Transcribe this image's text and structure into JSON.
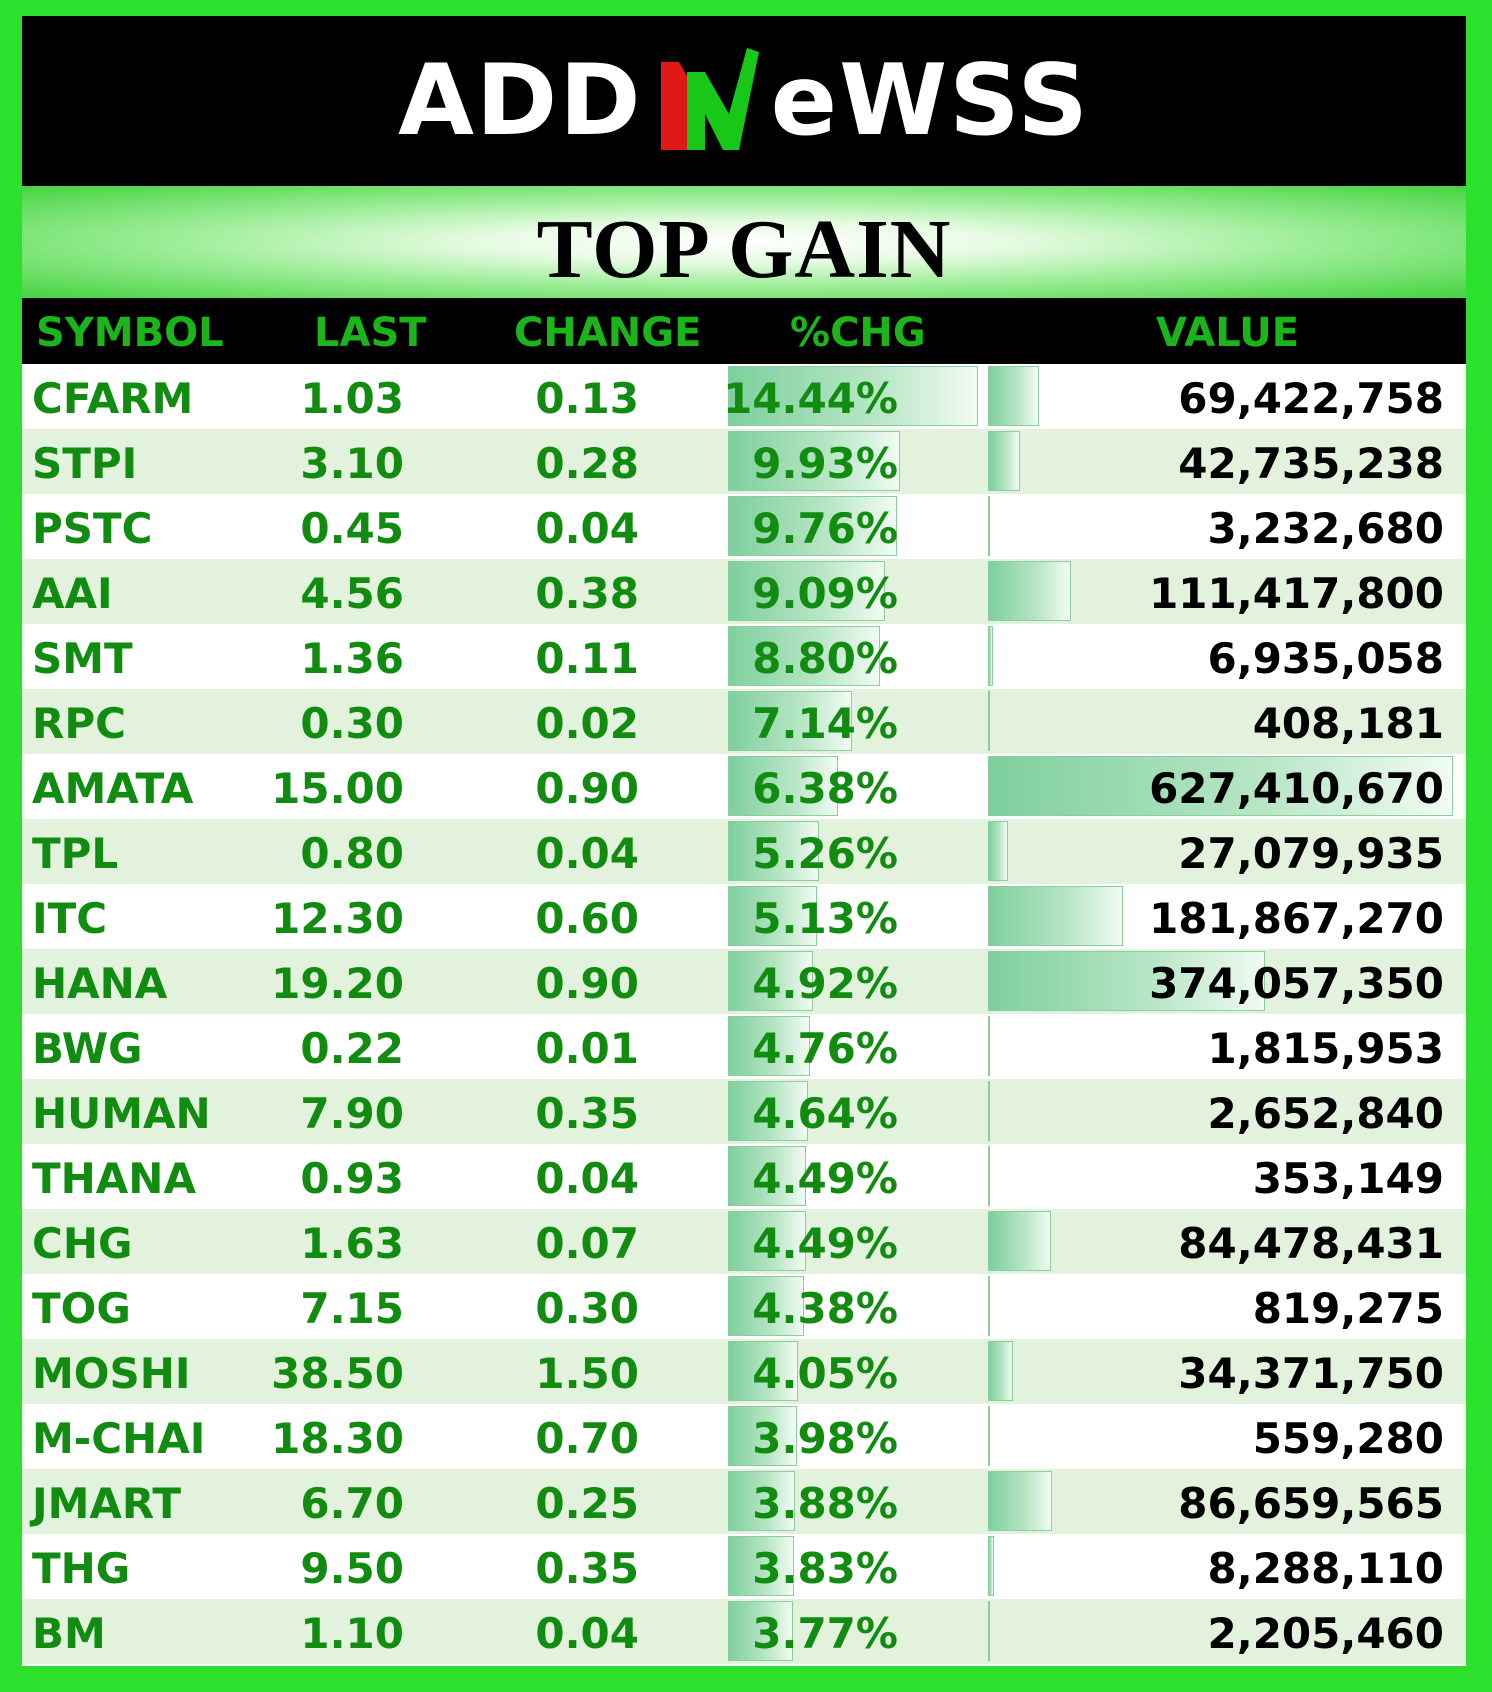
{
  "logo": {
    "text_left": "ADD",
    "text_right": "eWSS",
    "mark": "n-logo-icon"
  },
  "title": "TOP GAIN",
  "headers": {
    "symbol": "SYMBOL",
    "last": "LAST",
    "change": "CHANGE",
    "pct": "%CHG",
    "value": "VALUE"
  },
  "colors": {
    "accent_green": "#2de02d",
    "text_green": "#118c11",
    "header_green": "#1bb41b",
    "bar": "#7ecf9d",
    "alt_row": "#e3f2dd"
  },
  "rows": [
    {
      "symbol": "CFARM",
      "last": "1.03",
      "change": "0.13",
      "pct": "14.44%",
      "value": "69,422,758",
      "pct_num": 14.44,
      "value_num": 69422758
    },
    {
      "symbol": "STPI",
      "last": "3.10",
      "change": "0.28",
      "pct": "9.93%",
      "value": "42,735,238",
      "pct_num": 9.93,
      "value_num": 42735238
    },
    {
      "symbol": "PSTC",
      "last": "0.45",
      "change": "0.04",
      "pct": "9.76%",
      "value": "3,232,680",
      "pct_num": 9.76,
      "value_num": 3232680
    },
    {
      "symbol": "AAI",
      "last": "4.56",
      "change": "0.38",
      "pct": "9.09%",
      "value": "111,417,800",
      "pct_num": 9.09,
      "value_num": 111417800
    },
    {
      "symbol": "SMT",
      "last": "1.36",
      "change": "0.11",
      "pct": "8.80%",
      "value": "6,935,058",
      "pct_num": 8.8,
      "value_num": 6935058
    },
    {
      "symbol": "RPC",
      "last": "0.30",
      "change": "0.02",
      "pct": "7.14%",
      "value": "408,181",
      "pct_num": 7.14,
      "value_num": 408181
    },
    {
      "symbol": "AMATA",
      "last": "15.00",
      "change": "0.90",
      "pct": "6.38%",
      "value": "627,410,670",
      "pct_num": 6.38,
      "value_num": 627410670
    },
    {
      "symbol": "TPL",
      "last": "0.80",
      "change": "0.04",
      "pct": "5.26%",
      "value": "27,079,935",
      "pct_num": 5.26,
      "value_num": 27079935
    },
    {
      "symbol": "ITC",
      "last": "12.30",
      "change": "0.60",
      "pct": "5.13%",
      "value": "181,867,270",
      "pct_num": 5.13,
      "value_num": 181867270
    },
    {
      "symbol": "HANA",
      "last": "19.20",
      "change": "0.90",
      "pct": "4.92%",
      "value": "374,057,350",
      "pct_num": 4.92,
      "value_num": 374057350
    },
    {
      "symbol": "BWG",
      "last": "0.22",
      "change": "0.01",
      "pct": "4.76%",
      "value": "1,815,953",
      "pct_num": 4.76,
      "value_num": 1815953
    },
    {
      "symbol": "HUMAN",
      "last": "7.90",
      "change": "0.35",
      "pct": "4.64%",
      "value": "2,652,840",
      "pct_num": 4.64,
      "value_num": 2652840
    },
    {
      "symbol": "THANA",
      "last": "0.93",
      "change": "0.04",
      "pct": "4.49%",
      "value": "353,149",
      "pct_num": 4.49,
      "value_num": 353149
    },
    {
      "symbol": "CHG",
      "last": "1.63",
      "change": "0.07",
      "pct": "4.49%",
      "value": "84,478,431",
      "pct_num": 4.49,
      "value_num": 84478431
    },
    {
      "symbol": "TOG",
      "last": "7.15",
      "change": "0.30",
      "pct": "4.38%",
      "value": "819,275",
      "pct_num": 4.38,
      "value_num": 819275
    },
    {
      "symbol": "MOSHI",
      "last": "38.50",
      "change": "1.50",
      "pct": "4.05%",
      "value": "34,371,750",
      "pct_num": 4.05,
      "value_num": 34371750
    },
    {
      "symbol": "M-CHAI",
      "last": "18.30",
      "change": "0.70",
      "pct": "3.98%",
      "value": "559,280",
      "pct_num": 3.98,
      "value_num": 559280
    },
    {
      "symbol": "JMART",
      "last": "6.70",
      "change": "0.25",
      "pct": "3.88%",
      "value": "86,659,565",
      "pct_num": 3.88,
      "value_num": 86659565
    },
    {
      "symbol": "THG",
      "last": "9.50",
      "change": "0.35",
      "pct": "3.83%",
      "value": "8,288,110",
      "pct_num": 3.83,
      "value_num": 8288110
    },
    {
      "symbol": "BM",
      "last": "1.10",
      "change": "0.04",
      "pct": "3.77%",
      "value": "2,205,460",
      "pct_num": 3.77,
      "value_num": 2205460
    }
  ]
}
